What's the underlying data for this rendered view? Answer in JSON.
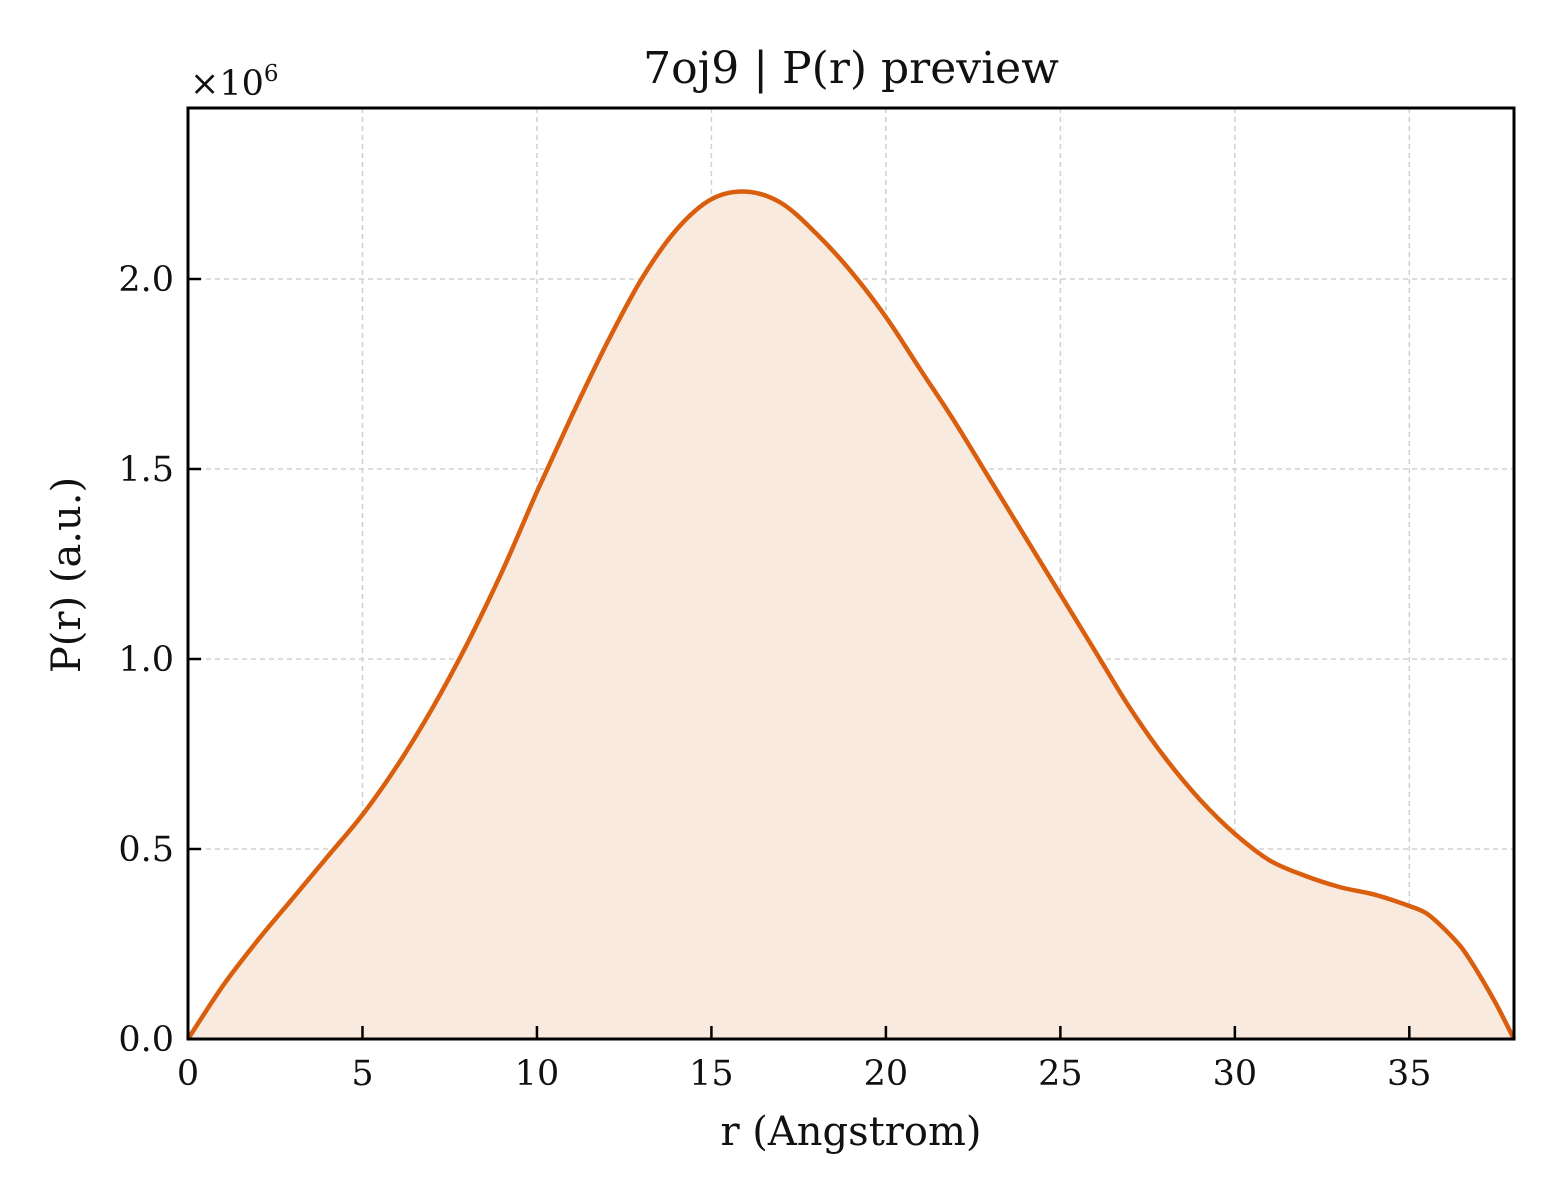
{
  "chart_data": {
    "type": "area",
    "title": "7oj9 | P(r) preview",
    "xlabel": "r (Angstrom)",
    "ylabel": "P(r) (a.u.)",
    "y_offset_text": {
      "base": "×10",
      "exponent": "6"
    },
    "xlim": [
      0,
      38
    ],
    "ylim": [
      0,
      2.45
    ],
    "y_scale_note": "values in units of 1e6",
    "x_ticks": [
      0,
      5,
      10,
      15,
      20,
      25,
      30,
      35
    ],
    "x_tick_labels": [
      "0",
      "5",
      "10",
      "15",
      "20",
      "25",
      "30",
      "35"
    ],
    "y_ticks": [
      0.0,
      0.5,
      1.0,
      1.5,
      2.0
    ],
    "y_tick_labels": [
      "0.0",
      "0.5",
      "1.0",
      "1.5",
      "2.0"
    ],
    "grid": true,
    "line_color": "#d95f0e",
    "fill_color": "#f9eadf",
    "series": [
      {
        "x": [
          0,
          1,
          2,
          3,
          4,
          5,
          6,
          7,
          8,
          9,
          10,
          11,
          12,
          13,
          14,
          15,
          16,
          17,
          18,
          19,
          20,
          21,
          22,
          23,
          24,
          25,
          26,
          27,
          28,
          29,
          30,
          31,
          32,
          33,
          34,
          35,
          35.5,
          36,
          36.5,
          37,
          37.5,
          38
        ],
        "y": [
          0.0,
          0.14,
          0.26,
          0.37,
          0.48,
          0.59,
          0.72,
          0.87,
          1.04,
          1.23,
          1.44,
          1.64,
          1.83,
          2.0,
          2.13,
          2.21,
          2.23,
          2.2,
          2.12,
          2.02,
          1.9,
          1.76,
          1.62,
          1.47,
          1.32,
          1.17,
          1.02,
          0.87,
          0.74,
          0.63,
          0.54,
          0.47,
          0.43,
          0.4,
          0.38,
          0.35,
          0.33,
          0.29,
          0.24,
          0.17,
          0.09,
          0.0
        ]
      }
    ]
  }
}
